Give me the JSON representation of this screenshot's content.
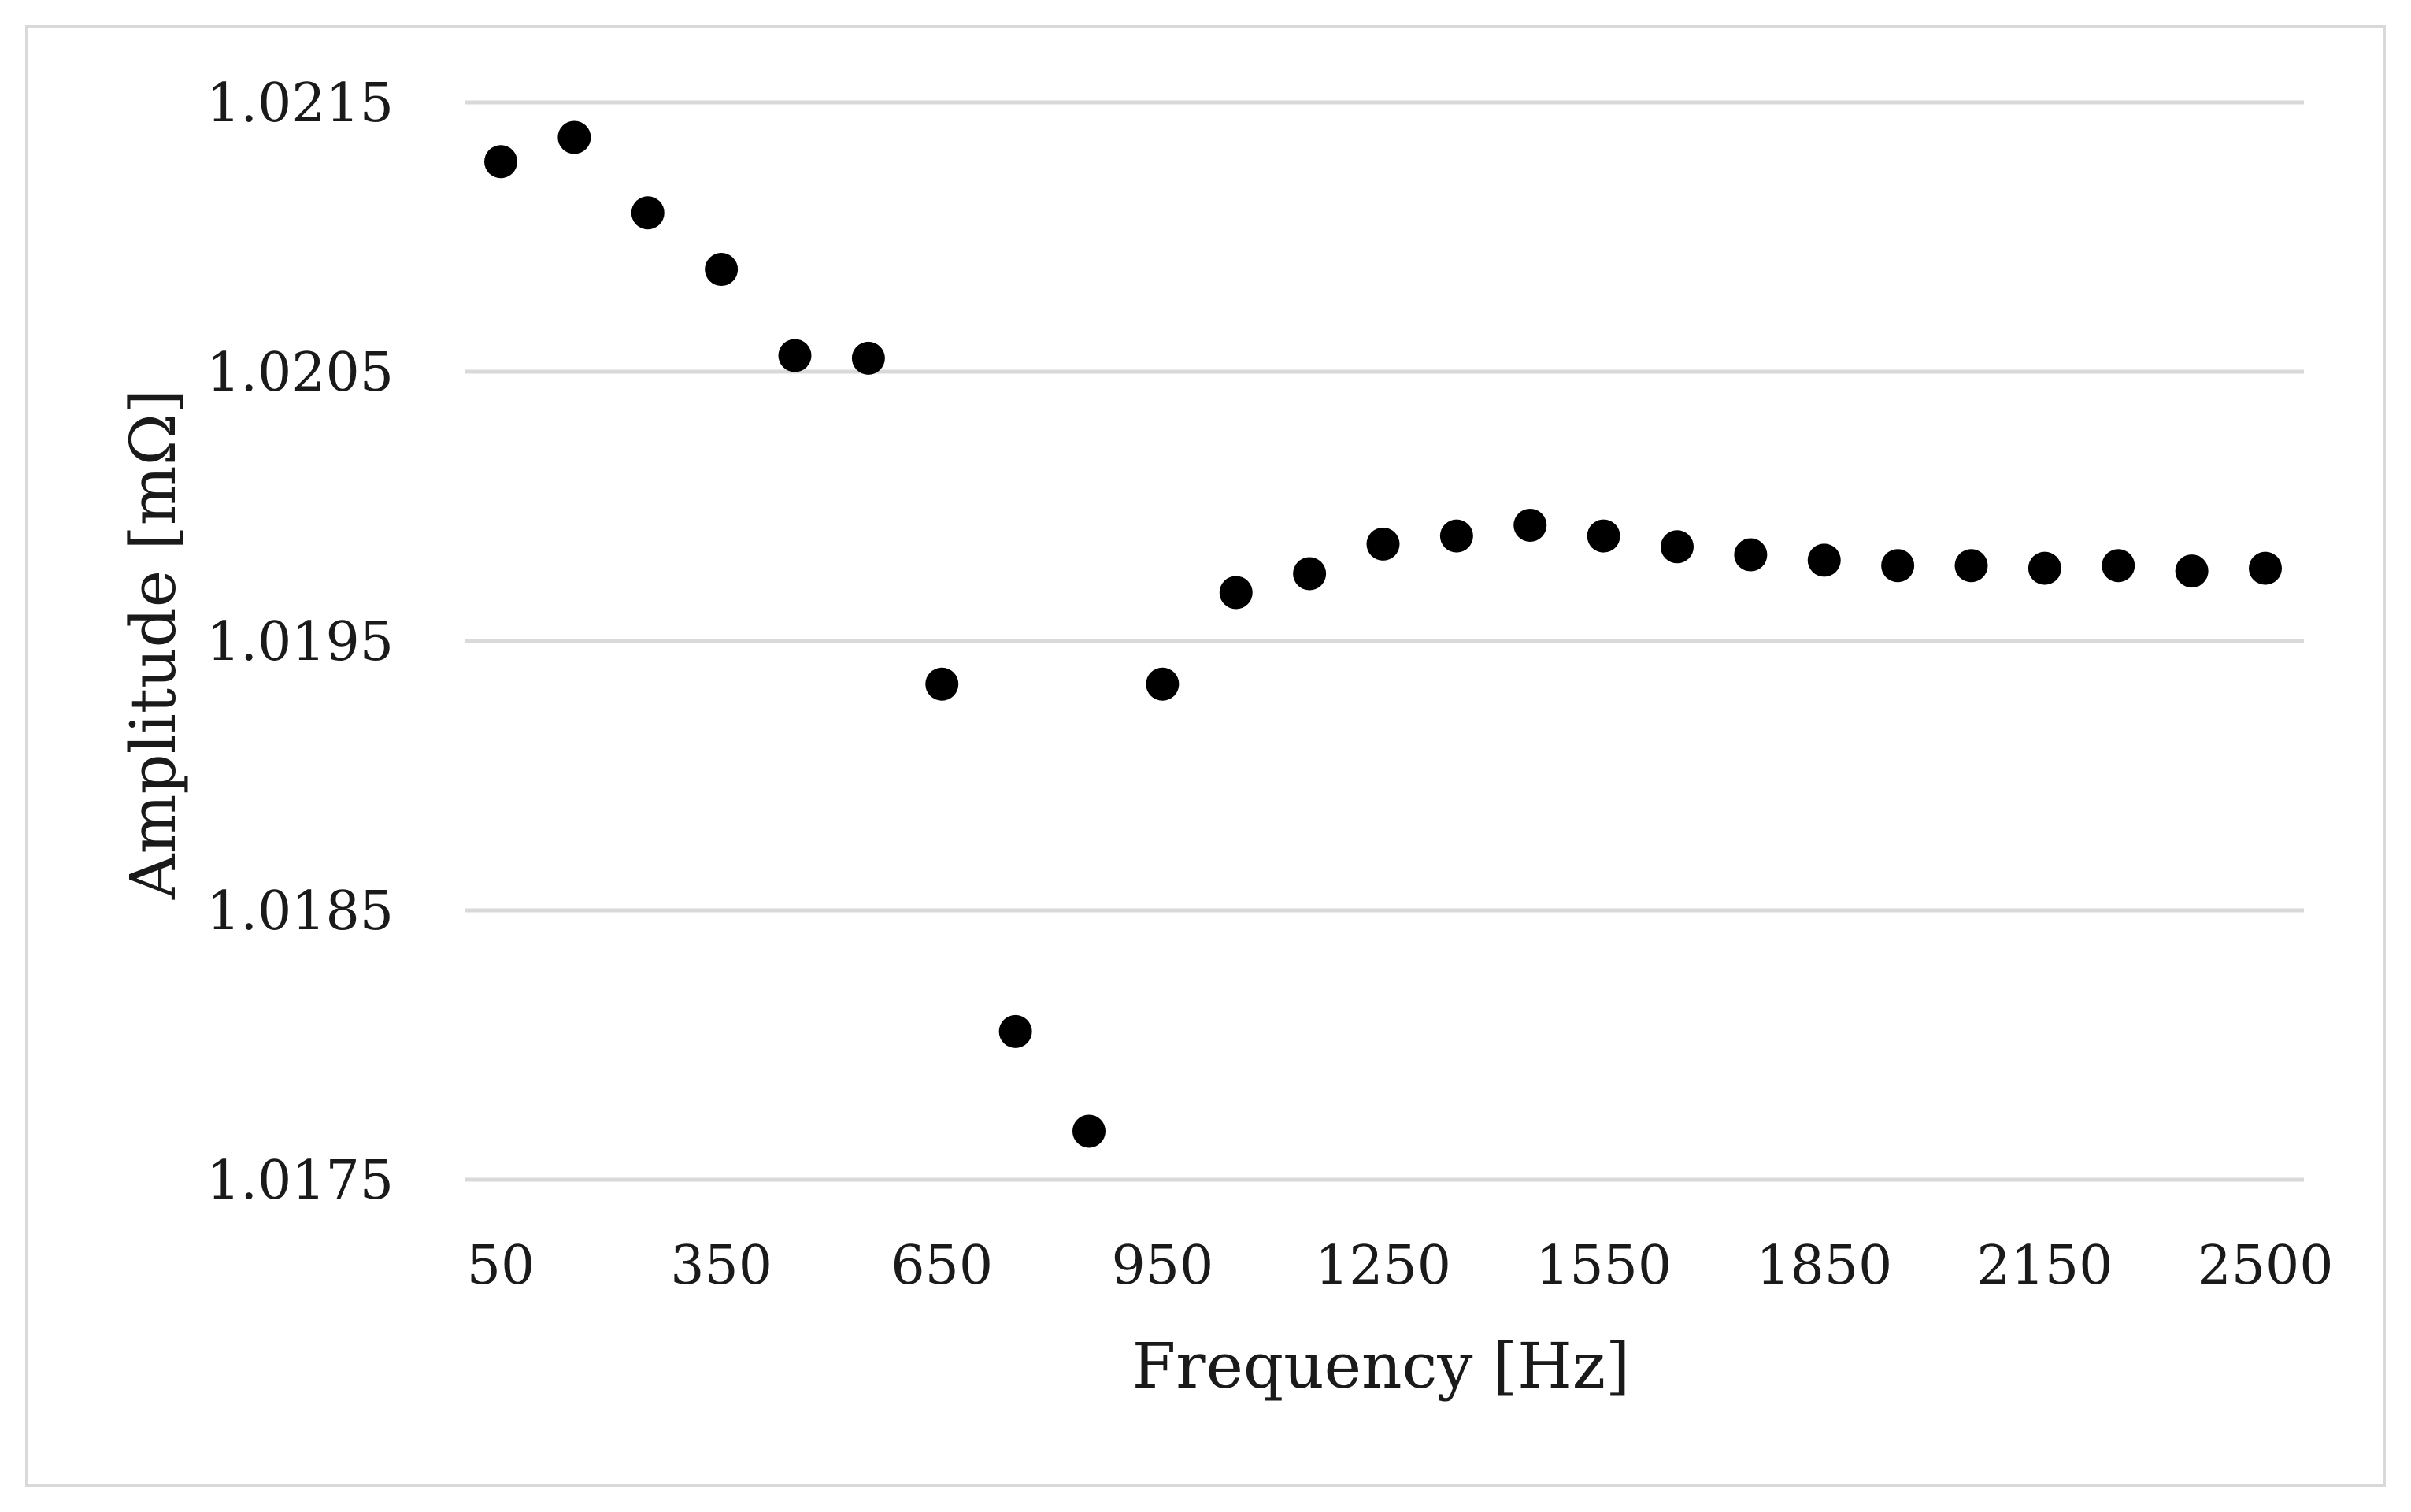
{
  "chart_data": {
    "type": "scatter",
    "title": "",
    "xlabel": "Frequency [Hz]",
    "ylabel": "Amplitude [mΩ]",
    "x_ticks": [
      "50",
      "350",
      "650",
      "950",
      "1250",
      "1550",
      "1850",
      "2150",
      "2500"
    ],
    "y_ticks": [
      "1.0215",
      "1.0205",
      "1.0195",
      "1.0185",
      "1.0175"
    ],
    "ylim": [
      1.0175,
      1.0215
    ],
    "grid": "horizontal",
    "marker_color": "#000000",
    "series": [
      {
        "x": [
          50,
          150,
          250,
          350,
          450,
          550,
          650,
          750,
          850,
          950,
          1050,
          1150,
          1250,
          1350,
          1450,
          1550,
          1650,
          1750,
          1850,
          1950,
          2050,
          2150,
          2250,
          2350,
          2450
        ],
        "y": [
          1.02128,
          1.02137,
          1.02109,
          1.02088,
          1.02056,
          1.02055,
          1.01934,
          1.01805,
          1.01768,
          1.01934,
          1.01968,
          1.01975,
          1.01986,
          1.01989,
          1.01993,
          1.01989,
          1.01985,
          1.01982,
          1.0198,
          1.01978,
          1.01978,
          1.01977,
          1.01978,
          1.01976,
          1.01977
        ]
      }
    ]
  }
}
